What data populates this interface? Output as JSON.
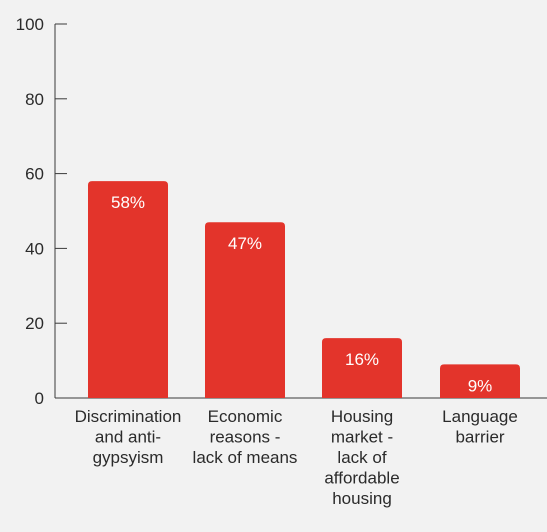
{
  "chart_data": {
    "type": "bar",
    "categories": [
      "Discrimination and anti-gypsyism",
      "Economic reasons - lack of means",
      "Housing market - lack of affordable housing",
      "Language barrier"
    ],
    "category_label_lines": [
      [
        "Discrimination",
        "and anti-",
        "gypsyism"
      ],
      [
        "Economic",
        "reasons -",
        "lack of means"
      ],
      [
        "Housing",
        "market -",
        "lack of",
        "affordable",
        "housing"
      ],
      [
        "Language",
        "barrier"
      ]
    ],
    "values": [
      58,
      47,
      16,
      9
    ],
    "data_labels": [
      "58%",
      "47%",
      "16%",
      "9%"
    ],
    "yticks": [
      0,
      20,
      40,
      60,
      80,
      100
    ],
    "ylim": [
      0,
      100
    ],
    "title": "",
    "xlabel": "",
    "ylabel": "",
    "grid": false,
    "colors": {
      "bar": "#e3342b",
      "background": "#f2f2f2"
    }
  }
}
